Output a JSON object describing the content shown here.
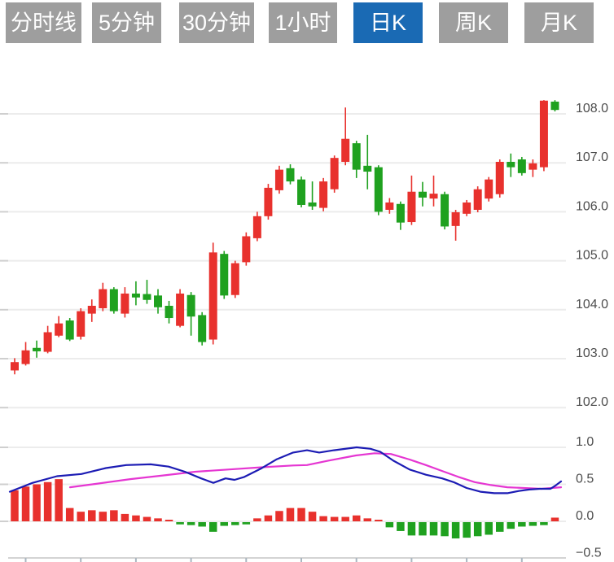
{
  "toolbar": {
    "buttons": [
      {
        "label": "分时线",
        "active": false
      },
      {
        "label": "5分钟",
        "active": false
      },
      {
        "label": "30分钟",
        "active": false
      },
      {
        "label": "1小时",
        "active": false
      },
      {
        "label": "日K",
        "active": true
      },
      {
        "label": "周K",
        "active": false
      },
      {
        "label": "月K",
        "active": false
      }
    ]
  },
  "colors": {
    "up": "#e8312d",
    "down": "#1fa11f",
    "dif_line": "#1c1cb4",
    "dea_line": "#e536d2",
    "grid": "#ececec",
    "grid_tick": "#cfcfcf",
    "axis_line": "#d4d4d4",
    "axis_tick": "#aab6c0",
    "label_text": "#4d4d4d",
    "button_bg": "#9e9e9e",
    "button_active_bg": "#1a6ab4",
    "button_text": "#ffffff"
  },
  "chart_data": {
    "type": "candlestick",
    "title": "",
    "grid": true,
    "legend_position": "none",
    "price_axis": {
      "side": "right",
      "ticks": [
        {
          "v": 108.0,
          "label": "108.0"
        },
        {
          "v": 107.0,
          "label": "107.0"
        },
        {
          "v": 106.0,
          "label": "106.0"
        },
        {
          "v": 105.0,
          "label": "105.0"
        },
        {
          "v": 104.0,
          "label": "104.0"
        },
        {
          "v": 103.0,
          "label": "103.0"
        },
        {
          "v": 102.0,
          "label": "102.0"
        }
      ],
      "range": [
        101.5,
        108.5
      ]
    },
    "candles_ohlc": [
      [
        102.76,
        103.01,
        102.68,
        102.93
      ],
      [
        102.89,
        103.34,
        102.86,
        103.17
      ],
      [
        103.22,
        103.37,
        103.02,
        103.15
      ],
      [
        103.14,
        103.67,
        103.11,
        103.54
      ],
      [
        103.47,
        103.87,
        103.44,
        103.72
      ],
      [
        103.78,
        103.83,
        103.36,
        103.39
      ],
      [
        103.45,
        104.03,
        103.39,
        103.97
      ],
      [
        103.92,
        104.21,
        103.75,
        104.08
      ],
      [
        104.03,
        104.55,
        103.97,
        104.42
      ],
      [
        104.42,
        104.46,
        103.92,
        103.97
      ],
      [
        103.92,
        104.46,
        103.84,
        104.33
      ],
      [
        104.33,
        104.58,
        104.09,
        104.25
      ],
      [
        104.32,
        104.61,
        104.12,
        104.2
      ],
      [
        104.29,
        104.42,
        103.92,
        104.05
      ],
      [
        104.08,
        104.18,
        103.72,
        103.83
      ],
      [
        103.67,
        104.42,
        103.64,
        104.33
      ],
      [
        104.3,
        104.36,
        103.47,
        103.86
      ],
      [
        103.89,
        103.95,
        103.27,
        103.34
      ],
      [
        103.39,
        105.37,
        103.29,
        105.17
      ],
      [
        105.14,
        105.2,
        104.22,
        104.29
      ],
      [
        104.3,
        105.0,
        104.24,
        104.95
      ],
      [
        104.97,
        105.58,
        104.9,
        105.5
      ],
      [
        105.46,
        106.0,
        105.4,
        105.91
      ],
      [
        105.91,
        106.57,
        105.84,
        106.49
      ],
      [
        106.44,
        106.94,
        106.37,
        106.86
      ],
      [
        106.89,
        106.97,
        106.56,
        106.62
      ],
      [
        106.66,
        106.72,
        106.09,
        106.14
      ],
      [
        106.19,
        106.62,
        106.04,
        106.11
      ],
      [
        106.08,
        106.69,
        106.01,
        106.62
      ],
      [
        106.46,
        107.15,
        106.39,
        107.1
      ],
      [
        107.02,
        108.13,
        106.95,
        107.49
      ],
      [
        107.4,
        107.45,
        106.69,
        106.86
      ],
      [
        106.94,
        107.57,
        106.46,
        106.82
      ],
      [
        106.91,
        106.95,
        105.93,
        106.0
      ],
      [
        106.04,
        106.28,
        105.96,
        106.19
      ],
      [
        106.16,
        106.21,
        105.63,
        105.78
      ],
      [
        105.79,
        106.74,
        105.73,
        106.41
      ],
      [
        106.41,
        106.61,
        106.11,
        106.29
      ],
      [
        106.27,
        106.74,
        106.11,
        106.37
      ],
      [
        106.36,
        106.41,
        105.64,
        105.7
      ],
      [
        105.71,
        106.04,
        105.41,
        105.99
      ],
      [
        105.96,
        106.24,
        105.91,
        106.19
      ],
      [
        106.04,
        106.52,
        105.99,
        106.46
      ],
      [
        106.27,
        106.71,
        106.21,
        106.66
      ],
      [
        106.36,
        107.07,
        106.29,
        107.02
      ],
      [
        107.02,
        107.19,
        106.71,
        106.91
      ],
      [
        107.07,
        107.12,
        106.74,
        106.79
      ],
      [
        106.86,
        107.07,
        106.71,
        106.99
      ],
      [
        106.91,
        108.28,
        106.83,
        108.27
      ],
      [
        108.25,
        108.28,
        108.05,
        108.08
      ]
    ],
    "macd": {
      "axis_ticks": [
        {
          "v": 1.0,
          "label": "1.0"
        },
        {
          "v": 0.5,
          "label": "0.5"
        },
        {
          "v": 0.0,
          "label": "0.0"
        },
        {
          "v": -0.5,
          "label": "−0.5"
        }
      ],
      "range": [
        -0.5,
        1.0
      ],
      "histogram": [
        0.42,
        0.47,
        0.5,
        0.53,
        0.57,
        0.18,
        0.13,
        0.15,
        0.13,
        0.15,
        0.1,
        0.08,
        0.06,
        0.04,
        0.02,
        -0.03,
        -0.04,
        -0.06,
        -0.13,
        -0.05,
        -0.04,
        -0.03,
        0.04,
        0.08,
        0.14,
        0.18,
        0.18,
        0.13,
        0.07,
        0.06,
        0.06,
        0.08,
        0.04,
        0.02,
        -0.07,
        -0.12,
        -0.18,
        -0.18,
        -0.18,
        -0.19,
        -0.22,
        -0.21,
        -0.19,
        -0.17,
        -0.13,
        -0.09,
        -0.06,
        -0.05,
        -0.04,
        0.05
      ],
      "dif_points": [
        [
          12,
          0.4
        ],
        [
          40,
          0.52
        ],
        [
          70,
          0.61
        ],
        [
          100,
          0.64
        ],
        [
          130,
          0.72
        ],
        [
          155,
          0.76
        ],
        [
          185,
          0.77
        ],
        [
          207,
          0.74
        ],
        [
          227,
          0.67
        ],
        [
          247,
          0.58
        ],
        [
          262,
          0.52
        ],
        [
          277,
          0.58
        ],
        [
          288,
          0.56
        ],
        [
          300,
          0.6
        ],
        [
          320,
          0.71
        ],
        [
          340,
          0.84
        ],
        [
          360,
          0.93
        ],
        [
          377,
          0.96
        ],
        [
          392,
          0.93
        ],
        [
          410,
          0.96
        ],
        [
          438,
          1.0
        ],
        [
          455,
          0.98
        ],
        [
          467,
          0.94
        ],
        [
          483,
          0.82
        ],
        [
          503,
          0.7
        ],
        [
          523,
          0.63
        ],
        [
          543,
          0.58
        ],
        [
          557,
          0.53
        ],
        [
          573,
          0.45
        ],
        [
          590,
          0.4
        ],
        [
          607,
          0.38
        ],
        [
          623,
          0.38
        ],
        [
          637,
          0.41
        ],
        [
          650,
          0.43
        ],
        [
          663,
          0.44
        ],
        [
          676,
          0.44
        ],
        [
          683,
          0.49
        ],
        [
          689,
          0.54
        ]
      ],
      "dea_points": [
        [
          86,
          0.46
        ],
        [
          120,
          0.51
        ],
        [
          160,
          0.57
        ],
        [
          200,
          0.62
        ],
        [
          240,
          0.67
        ],
        [
          280,
          0.7
        ],
        [
          320,
          0.73
        ],
        [
          360,
          0.755
        ],
        [
          377,
          0.76
        ],
        [
          403,
          0.82
        ],
        [
          437,
          0.89
        ],
        [
          460,
          0.92
        ],
        [
          480,
          0.91
        ],
        [
          503,
          0.835
        ],
        [
          523,
          0.76
        ],
        [
          543,
          0.68
        ],
        [
          563,
          0.6
        ],
        [
          583,
          0.53
        ],
        [
          603,
          0.49
        ],
        [
          623,
          0.46
        ],
        [
          643,
          0.45
        ],
        [
          665,
          0.44
        ],
        [
          689,
          0.46
        ]
      ]
    }
  }
}
